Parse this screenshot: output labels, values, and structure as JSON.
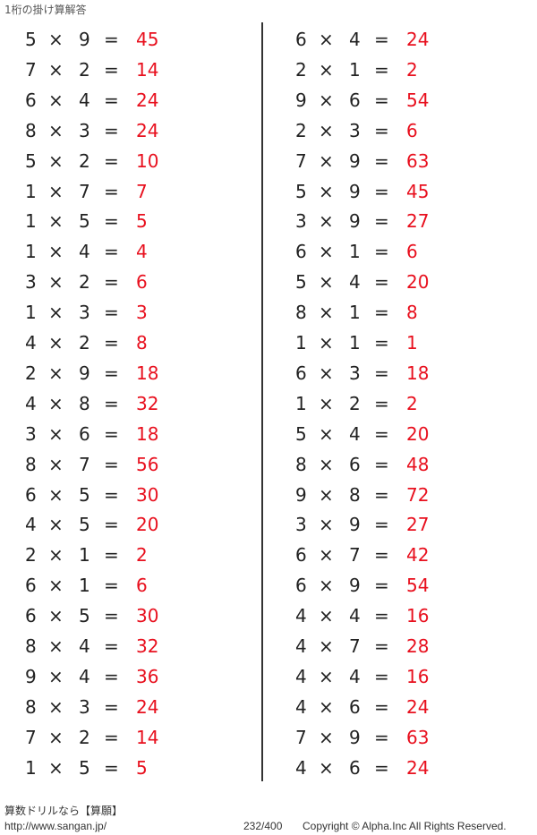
{
  "title": "1桁の掛け算解答",
  "symbols": {
    "times": "×",
    "equals": "="
  },
  "left": [
    [
      "5",
      "9",
      "45"
    ],
    [
      "7",
      "2",
      "14"
    ],
    [
      "6",
      "4",
      "24"
    ],
    [
      "8",
      "3",
      "24"
    ],
    [
      "5",
      "2",
      "10"
    ],
    [
      "1",
      "7",
      "7"
    ],
    [
      "1",
      "5",
      "5"
    ],
    [
      "1",
      "4",
      "4"
    ],
    [
      "3",
      "2",
      "6"
    ],
    [
      "1",
      "3",
      "3"
    ],
    [
      "4",
      "2",
      "8"
    ],
    [
      "2",
      "9",
      "18"
    ],
    [
      "4",
      "8",
      "32"
    ],
    [
      "3",
      "6",
      "18"
    ],
    [
      "8",
      "7",
      "56"
    ],
    [
      "6",
      "5",
      "30"
    ],
    [
      "4",
      "5",
      "20"
    ],
    [
      "2",
      "1",
      "2"
    ],
    [
      "6",
      "1",
      "6"
    ],
    [
      "6",
      "5",
      "30"
    ],
    [
      "8",
      "4",
      "32"
    ],
    [
      "9",
      "4",
      "36"
    ],
    [
      "8",
      "3",
      "24"
    ],
    [
      "7",
      "2",
      "14"
    ],
    [
      "1",
      "5",
      "5"
    ]
  ],
  "right": [
    [
      "6",
      "4",
      "24"
    ],
    [
      "2",
      "1",
      "2"
    ],
    [
      "9",
      "6",
      "54"
    ],
    [
      "2",
      "3",
      "6"
    ],
    [
      "7",
      "9",
      "63"
    ],
    [
      "5",
      "9",
      "45"
    ],
    [
      "3",
      "9",
      "27"
    ],
    [
      "6",
      "1",
      "6"
    ],
    [
      "5",
      "4",
      "20"
    ],
    [
      "8",
      "1",
      "8"
    ],
    [
      "1",
      "1",
      "1"
    ],
    [
      "6",
      "3",
      "18"
    ],
    [
      "1",
      "2",
      "2"
    ],
    [
      "5",
      "4",
      "20"
    ],
    [
      "8",
      "6",
      "48"
    ],
    [
      "9",
      "8",
      "72"
    ],
    [
      "3",
      "9",
      "27"
    ],
    [
      "6",
      "7",
      "42"
    ],
    [
      "6",
      "9",
      "54"
    ],
    [
      "4",
      "4",
      "16"
    ],
    [
      "4",
      "7",
      "28"
    ],
    [
      "4",
      "4",
      "16"
    ],
    [
      "4",
      "6",
      "24"
    ],
    [
      "7",
      "9",
      "63"
    ],
    [
      "4",
      "6",
      "24"
    ]
  ],
  "colors": {
    "answer": "#e8101e"
  },
  "footer": {
    "brand": "算数ドリルなら【算願】",
    "url": "http://www.sangan.jp/",
    "page": "232/400",
    "copyright": "Copyright © Alpha.Inc All Rights Reserved."
  }
}
